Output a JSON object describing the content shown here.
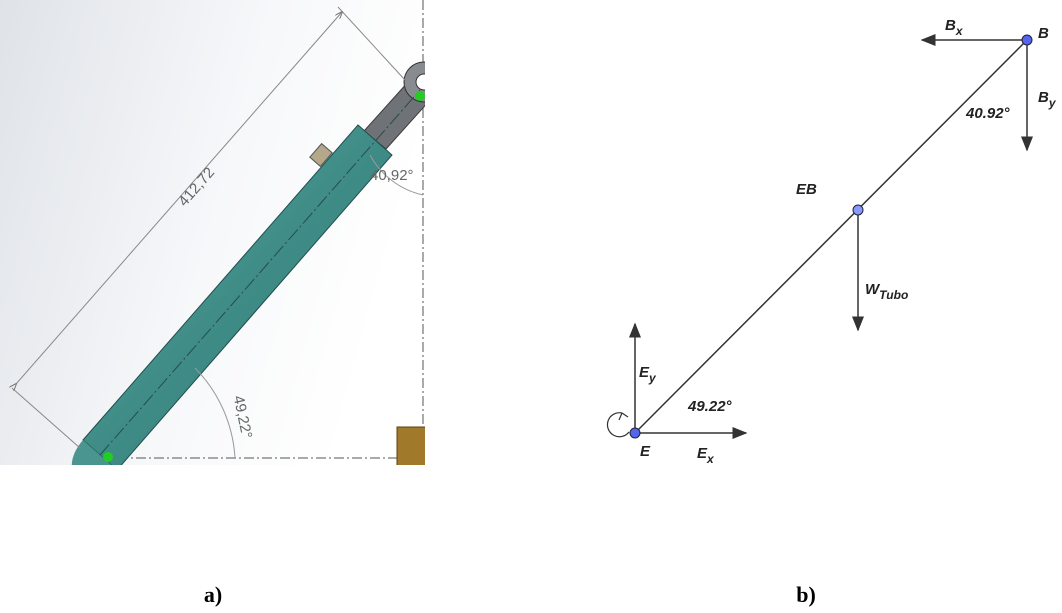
{
  "panel_a": {
    "dimension": "412,72",
    "angle_top": "40,92°",
    "angle_bottom": "49,22°"
  },
  "panel_b": {
    "bx": {
      "main": "B",
      "sub": "x"
    },
    "b": "B",
    "by": {
      "main": "B",
      "sub": "y"
    },
    "angle_top": "40.92°",
    "eb": "EB",
    "w": {
      "main": "W",
      "sub": "Tubo"
    },
    "ey": {
      "main": "E",
      "sub": "y"
    },
    "angle_bottom": "49.22°",
    "e": "E",
    "ex": {
      "main": "E",
      "sub": "x"
    }
  },
  "captions": [
    "a)",
    "b)"
  ]
}
